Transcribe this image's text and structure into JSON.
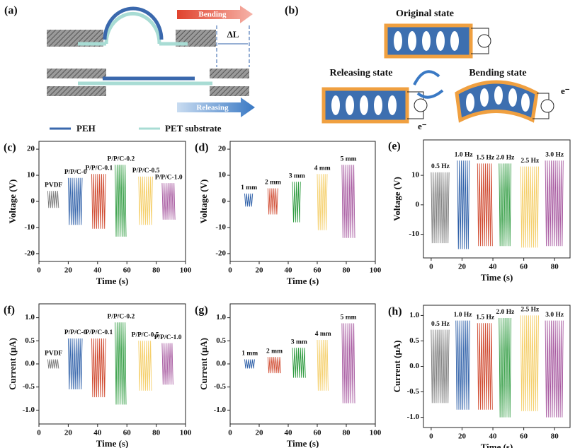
{
  "diagrams": {
    "a": {
      "label": "(a)",
      "bending": "Bending",
      "delta": "ΔL",
      "releasing": "Releasing",
      "legend": [
        "PEH",
        "PET substrate"
      ]
    },
    "b": {
      "label": "(b)",
      "original": "Original state",
      "releasing": "Releasing state",
      "bending": "Bending state",
      "electron_labels": [
        "e⁻",
        "e⁻"
      ]
    }
  },
  "chart_data": [
    {
      "type": "band",
      "label": "(c)",
      "x_label": "Time (s)",
      "y_label": "Voltage (V)",
      "xlim": [
        0,
        100
      ],
      "xticks": [
        0,
        20,
        40,
        60,
        80,
        100
      ],
      "ylim": [
        -23,
        23
      ],
      "yticks": [
        -20,
        -10,
        0,
        10,
        20
      ],
      "series": [
        {
          "name": "PVDF",
          "color": "#7a7a7a",
          "x": [
            6,
            14
          ],
          "values": [
            -2.5,
            4
          ]
        },
        {
          "name": "P/P/C-0",
          "color": "#2d5fa8",
          "x": [
            20,
            30
          ],
          "values": [
            -9,
            9
          ]
        },
        {
          "name": "P/P/C-0.1",
          "color": "#d04a30",
          "x": [
            36,
            46
          ],
          "values": [
            -10.5,
            10.5
          ]
        },
        {
          "name": "P/P/C-0.2",
          "color": "#2e9b3f",
          "x": [
            52,
            60
          ],
          "values": [
            -13.5,
            14
          ]
        },
        {
          "name": "P/P/C-0.5",
          "color": "#f5cf6a",
          "x": [
            68,
            78
          ],
          "values": [
            -9,
            9.5
          ]
        },
        {
          "name": "P/P/C-1.0",
          "color": "#a6579f",
          "x": [
            84,
            93
          ],
          "values": [
            -7,
            7
          ]
        }
      ]
    },
    {
      "type": "band",
      "label": "(d)",
      "x_label": "Time (s)",
      "y_label": "Voltage (V)",
      "xlim": [
        0,
        100
      ],
      "xticks": [
        0,
        20,
        40,
        60,
        80,
        100
      ],
      "ylim": [
        -23,
        23
      ],
      "yticks": [
        -20,
        -10,
        0,
        10,
        20
      ],
      "series": [
        {
          "name": "1 mm",
          "color": "#2d5fa8",
          "x": [
            10,
            16
          ],
          "values": [
            -2,
            3
          ]
        },
        {
          "name": "2 mm",
          "color": "#d04a30",
          "x": [
            26,
            33
          ],
          "values": [
            -5,
            5
          ]
        },
        {
          "name": "3 mm",
          "color": "#2e9b3f",
          "x": [
            43,
            49
          ],
          "values": [
            -8,
            7.5
          ]
        },
        {
          "name": "4 mm",
          "color": "#f5cf6a",
          "x": [
            60,
            67
          ],
          "values": [
            -11,
            10.5
          ]
        },
        {
          "name": "5 mm",
          "color": "#a6579f",
          "x": [
            77,
            86
          ],
          "values": [
            -14,
            14
          ]
        }
      ]
    },
    {
      "type": "band",
      "label": "(e)",
      "x_label": "Time (s)",
      "y_label": "Voltage (V)",
      "xlim": [
        -5,
        90
      ],
      "xticks": [
        0,
        20,
        40,
        60,
        80
      ],
      "ylim": [
        -18,
        22
      ],
      "yticks": [
        -10,
        0,
        10
      ],
      "series": [
        {
          "name": "0.5 Hz",
          "color": "#7a7a7a",
          "x": [
            0,
            12
          ],
          "values": [
            -13,
            11
          ]
        },
        {
          "name": "1.0 Hz",
          "color": "#2d5fa8",
          "x": [
            17,
            25
          ],
          "values": [
            -15,
            15
          ]
        },
        {
          "name": "1.5 Hz",
          "color": "#d04a30",
          "x": [
            30,
            40
          ],
          "values": [
            -14,
            14
          ]
        },
        {
          "name": "2.0 Hz",
          "color": "#2e9b3f",
          "x": [
            44,
            52
          ],
          "values": [
            -14,
            14
          ]
        },
        {
          "name": "2.5 Hz",
          "color": "#f5cf6a",
          "x": [
            58,
            70
          ],
          "values": [
            -14.5,
            13
          ]
        },
        {
          "name": "3.0 Hz",
          "color": "#a6579f",
          "x": [
            74,
            86
          ],
          "values": [
            -14,
            15
          ]
        }
      ]
    },
    {
      "type": "band",
      "label": "(f)",
      "x_label": "Time (s)",
      "y_label": "Current (μA)",
      "xlim": [
        0,
        100
      ],
      "xticks": [
        0,
        20,
        40,
        60,
        80,
        100
      ],
      "ylim": [
        -1.3,
        1.3
      ],
      "yticks": [
        {
          "value": -1,
          "label": "-1.0"
        },
        -0.5,
        {
          "value": 0,
          "label": "0.0"
        },
        0.5,
        {
          "value": 1,
          "label": "1.0"
        }
      ],
      "series": [
        {
          "name": "PVDF",
          "color": "#7a7a7a",
          "x": [
            6,
            14
          ],
          "values": [
            -0.1,
            0.1
          ]
        },
        {
          "name": "P/P/C-0",
          "color": "#2d5fa8",
          "x": [
            20,
            30
          ],
          "values": [
            -0.55,
            0.55
          ]
        },
        {
          "name": "P/P/C-0.1",
          "color": "#d04a30",
          "x": [
            36,
            46
          ],
          "values": [
            -0.72,
            0.55
          ]
        },
        {
          "name": "P/P/C-0.2",
          "color": "#2e9b3f",
          "x": [
            52,
            60
          ],
          "values": [
            -0.88,
            0.9
          ]
        },
        {
          "name": "P/P/C-0.5",
          "color": "#f5cf6a",
          "x": [
            68,
            77
          ],
          "values": [
            -0.58,
            0.5
          ]
        },
        {
          "name": "P/P/C-1.0",
          "color": "#a6579f",
          "x": [
            84,
            92
          ],
          "values": [
            -0.45,
            0.45
          ]
        }
      ]
    },
    {
      "type": "band",
      "label": "(g)",
      "x_label": "Time (s)",
      "y_label": "Current (μA)",
      "xlim": [
        0,
        100
      ],
      "xticks": [
        0,
        20,
        40,
        60,
        80,
        100
      ],
      "ylim": [
        -1.3,
        1.3
      ],
      "yticks": [
        {
          "value": -1,
          "label": "-1.0"
        },
        -0.5,
        {
          "value": 0,
          "label": "0.0"
        },
        0.5,
        {
          "value": 1,
          "label": "1.0"
        }
      ],
      "series": [
        {
          "name": "1 mm",
          "color": "#2d5fa8",
          "x": [
            10,
            17
          ],
          "values": [
            -0.1,
            0.1
          ]
        },
        {
          "name": "2 mm",
          "color": "#d04a30",
          "x": [
            26,
            35
          ],
          "values": [
            -0.2,
            0.15
          ]
        },
        {
          "name": "3 mm",
          "color": "#2e9b3f",
          "x": [
            43,
            52
          ],
          "values": [
            -0.3,
            0.35
          ]
        },
        {
          "name": "4 mm",
          "color": "#f5cf6a",
          "x": [
            60,
            68
          ],
          "values": [
            -0.58,
            0.52
          ]
        },
        {
          "name": "5 mm",
          "color": "#a6579f",
          "x": [
            77,
            86
          ],
          "values": [
            -0.85,
            0.88
          ]
        }
      ]
    },
    {
      "type": "band",
      "label": "(h)",
      "x_label": "Time (s)",
      "y_label": "Current (μA)",
      "xlim": [
        -5,
        90
      ],
      "xticks": [
        0,
        20,
        40,
        60,
        80
      ],
      "ylim": [
        -1.2,
        1.2
      ],
      "yticks": [
        {
          "value": -1,
          "label": "-1.0"
        },
        -0.5,
        {
          "value": 0,
          "label": "0.0"
        },
        0.5,
        {
          "value": 1,
          "label": "1.0"
        }
      ],
      "series": [
        {
          "name": "0.5 Hz",
          "color": "#7a7a7a",
          "x": [
            0,
            12
          ],
          "values": [
            -0.72,
            0.72
          ]
        },
        {
          "name": "1.0 Hz",
          "color": "#2d5fa8",
          "x": [
            16,
            25
          ],
          "values": [
            -0.85,
            0.9
          ]
        },
        {
          "name": "1.5 Hz",
          "color": "#d04a30",
          "x": [
            30,
            40
          ],
          "values": [
            -0.85,
            0.85
          ]
        },
        {
          "name": "2.0 Hz",
          "color": "#2e9b3f",
          "x": [
            44,
            52
          ],
          "values": [
            -1,
            0.95
          ]
        },
        {
          "name": "2.5 Hz",
          "color": "#f5cf6a",
          "x": [
            58,
            70
          ],
          "values": [
            -0.88,
            1
          ]
        },
        {
          "name": "3.0 Hz",
          "color": "#a6579f",
          "x": [
            74,
            86
          ],
          "values": [
            -1,
            0.9
          ]
        }
      ]
    }
  ]
}
